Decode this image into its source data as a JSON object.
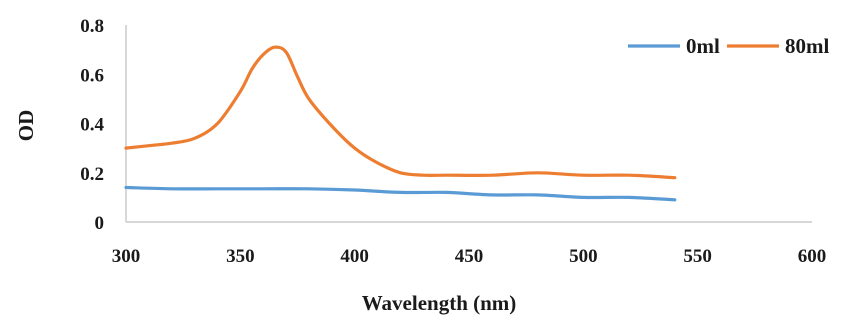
{
  "chart_data": {
    "type": "line",
    "title": "",
    "xlabel": "Wavelength (nm)",
    "ylabel": "OD",
    "xlim": [
      300,
      600
    ],
    "ylim": [
      0,
      0.8
    ],
    "x_ticks": [
      "300",
      "350",
      "400",
      "450",
      "500",
      "550",
      "600"
    ],
    "y_ticks": [
      "0",
      "0.2",
      "0.4",
      "0.6",
      "0.8"
    ],
    "grid": false,
    "legend_position": "top-right",
    "series": [
      {
        "name": "0ml",
        "color": "#5b9bd5",
        "points": [
          [
            300,
            0.14
          ],
          [
            320,
            0.135
          ],
          [
            340,
            0.135
          ],
          [
            360,
            0.135
          ],
          [
            380,
            0.135
          ],
          [
            400,
            0.13
          ],
          [
            420,
            0.12
          ],
          [
            440,
            0.12
          ],
          [
            460,
            0.11
          ],
          [
            480,
            0.11
          ],
          [
            500,
            0.1
          ],
          [
            520,
            0.1
          ],
          [
            540,
            0.09
          ]
        ]
      },
      {
        "name": "80ml",
        "color": "#ed7d31",
        "points": [
          [
            300,
            0.3
          ],
          [
            310,
            0.31
          ],
          [
            320,
            0.32
          ],
          [
            330,
            0.34
          ],
          [
            340,
            0.4
          ],
          [
            350,
            0.53
          ],
          [
            355,
            0.62
          ],
          [
            360,
            0.68
          ],
          [
            365,
            0.71
          ],
          [
            370,
            0.69
          ],
          [
            375,
            0.59
          ],
          [
            380,
            0.5
          ],
          [
            390,
            0.39
          ],
          [
            400,
            0.3
          ],
          [
            410,
            0.24
          ],
          [
            420,
            0.2
          ],
          [
            430,
            0.19
          ],
          [
            440,
            0.19
          ],
          [
            460,
            0.19
          ],
          [
            480,
            0.2
          ],
          [
            500,
            0.19
          ],
          [
            520,
            0.19
          ],
          [
            540,
            0.18
          ]
        ]
      }
    ]
  }
}
